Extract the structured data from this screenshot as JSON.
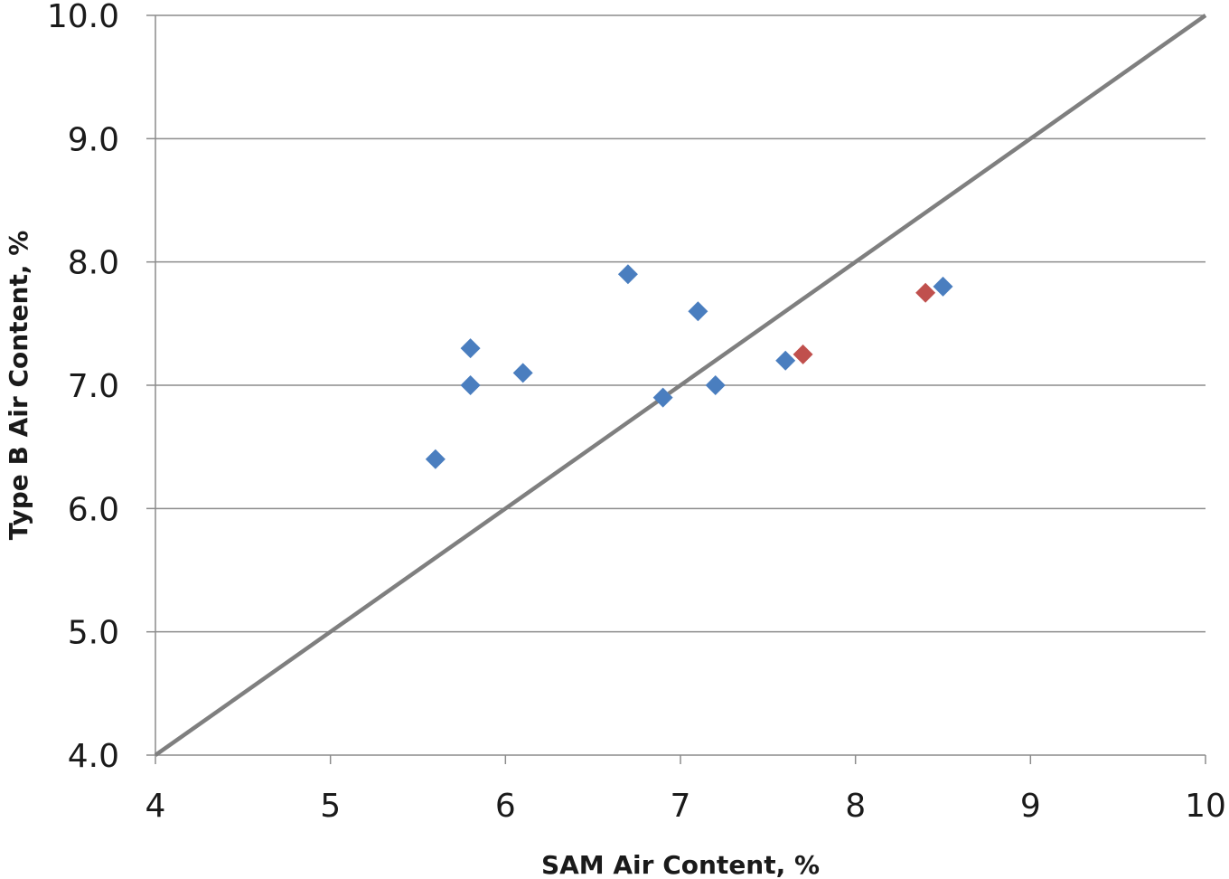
{
  "chart_data": {
    "type": "scatter",
    "title": "",
    "xlabel": "SAM Air Content, %",
    "ylabel": "Type B Air Content, %",
    "xlim": [
      4,
      10
    ],
    "ylim": [
      4.0,
      10.0
    ],
    "x_ticks": [
      "4",
      "5",
      "6",
      "7",
      "8",
      "9",
      "10"
    ],
    "y_ticks": [
      "4.0",
      "5.0",
      "6.0",
      "7.0",
      "8.0",
      "9.0",
      "10.0"
    ],
    "grid": "horizontal",
    "legend": "none",
    "series": [
      {
        "color": "#4a7ebf",
        "marker": "diamond",
        "points": [
          {
            "x": 5.6,
            "y": 6.4
          },
          {
            "x": 5.8,
            "y": 7.3
          },
          {
            "x": 5.8,
            "y": 7.0
          },
          {
            "x": 6.1,
            "y": 7.1
          },
          {
            "x": 6.7,
            "y": 7.9
          },
          {
            "x": 6.9,
            "y": 6.9
          },
          {
            "x": 7.1,
            "y": 7.6
          },
          {
            "x": 7.2,
            "y": 7.0
          },
          {
            "x": 7.6,
            "y": 7.2
          },
          {
            "x": 8.5,
            "y": 7.8
          }
        ]
      },
      {
        "color": "#c0504d",
        "marker": "diamond",
        "points": [
          {
            "x": 7.7,
            "y": 7.25
          },
          {
            "x": 8.4,
            "y": 7.75
          }
        ]
      }
    ],
    "reference_line": {
      "from": {
        "x": 4,
        "y": 4.0
      },
      "to": {
        "x": 10,
        "y": 10.0
      },
      "color": "#7f7f7f"
    }
  }
}
